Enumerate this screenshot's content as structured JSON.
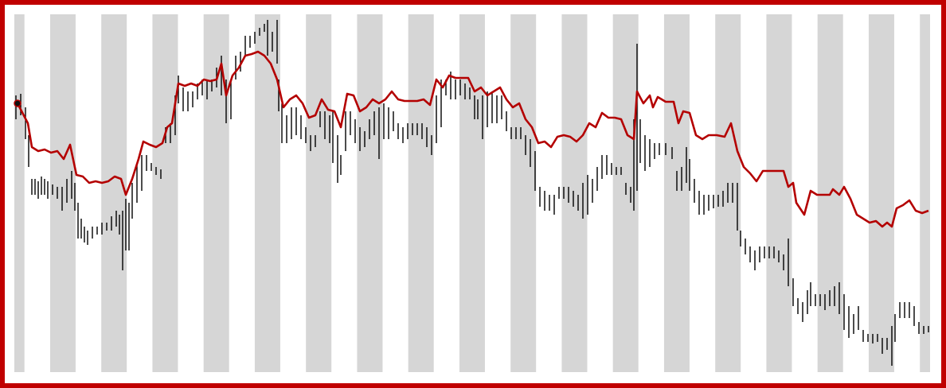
{
  "chart_data": {
    "type": "ohlc",
    "xlim": [
      18,
      1168
    ],
    "ylim": [
      0,
      450
    ],
    "bars": {
      "color": "#000000",
      "x": [
        20,
        26,
        32,
        36,
        40,
        44,
        48,
        52,
        56,
        60,
        66,
        72,
        78,
        84,
        90,
        94,
        98,
        102,
        106,
        110,
        116,
        122,
        128,
        134,
        140,
        146,
        150,
        154,
        158,
        162,
        166,
        172,
        178,
        184,
        190,
        196,
        202,
        208,
        214,
        220,
        224,
        230,
        236,
        242,
        248,
        254,
        260,
        266,
        272,
        278,
        284,
        290,
        296,
        302,
        308,
        314,
        320,
        326,
        332,
        336,
        342,
        348,
        350,
        354,
        360,
        366,
        372,
        378,
        384,
        390,
        396,
        402,
        408,
        414,
        418,
        424,
        428,
        434,
        440,
        446,
        452,
        458,
        464,
        470,
        476,
        482,
        488,
        494,
        500,
        506,
        512,
        518,
        524,
        530,
        536,
        542,
        548,
        554,
        560,
        566,
        572,
        578,
        584,
        590,
        596,
        600,
        606,
        612,
        618,
        624,
        630,
        636,
        642,
        648,
        654,
        660,
        666,
        672,
        678,
        684,
        690,
        696,
        702,
        708,
        714,
        720,
        726,
        732,
        738,
        744,
        750,
        756,
        762,
        768,
        774,
        780,
        786,
        792,
        796,
        800,
        804,
        810,
        816,
        822,
        828,
        836,
        844,
        850,
        856,
        862,
        866,
        872,
        878,
        884,
        890,
        896,
        902,
        908,
        914,
        920,
        926,
        930,
        936,
        942,
        948,
        954,
        960,
        966,
        972,
        978,
        984,
        990,
        996,
        1002,
        1008,
        1014,
        1018,
        1024,
        1030,
        1036,
        1042,
        1048,
        1054,
        1060,
        1066,
        1072,
        1078,
        1084,
        1090,
        1096,
        1102,
        1108,
        1114,
        1120,
        1124,
        1130,
        1136,
        1142,
        1148,
        1154,
        1160,
        1166
      ],
      "high": [
        348,
        350,
        333,
        298,
        243,
        243,
        240,
        246,
        243,
        240,
        236,
        233,
        233,
        243,
        253,
        238,
        213,
        193,
        183,
        178,
        183,
        183,
        188,
        188,
        196,
        203,
        198,
        203,
        218,
        213,
        238,
        263,
        273,
        273,
        263,
        258,
        255,
        308,
        313,
        348,
        373,
        358,
        353,
        353,
        363,
        368,
        368,
        368,
        383,
        398,
        368,
        368,
        398,
        403,
        423,
        423,
        428,
        433,
        438,
        443,
        428,
        443,
        368,
        338,
        323,
        333,
        333,
        323,
        308,
        298,
        298,
        328,
        328,
        323,
        328,
        298,
        273,
        328,
        328,
        318,
        308,
        303,
        318,
        328,
        333,
        338,
        333,
        328,
        313,
        308,
        313,
        313,
        313,
        313,
        308,
        298,
        348,
        368,
        368,
        378,
        368,
        368,
        363,
        358,
        348,
        343,
        348,
        353,
        353,
        348,
        348,
        328,
        308,
        308,
        308,
        298,
        293,
        278,
        233,
        228,
        223,
        223,
        233,
        233,
        233,
        228,
        223,
        238,
        248,
        243,
        258,
        273,
        273,
        263,
        258,
        258,
        238,
        233,
        318,
        413,
        318,
        298,
        293,
        288,
        288,
        288,
        283,
        253,
        258,
        283,
        268,
        243,
        228,
        223,
        223,
        223,
        223,
        228,
        238,
        238,
        238,
        178,
        168,
        158,
        153,
        158,
        158,
        158,
        158,
        153,
        148,
        168,
        118,
        93,
        88,
        103,
        113,
        98,
        98,
        98,
        103,
        108,
        113,
        98,
        83,
        73,
        83,
        53,
        48,
        48,
        48,
        43,
        43,
        58,
        73,
        88,
        88,
        88,
        83,
        63,
        58,
        58
      ],
      "low": [
        318,
        323,
        293,
        258,
        223,
        223,
        218,
        223,
        223,
        218,
        223,
        218,
        203,
        213,
        218,
        203,
        168,
        168,
        163,
        160,
        168,
        173,
        173,
        178,
        178,
        183,
        173,
        128,
        153,
        153,
        193,
        213,
        228,
        253,
        253,
        248,
        243,
        288,
        288,
        298,
        338,
        328,
        328,
        333,
        343,
        348,
        343,
        353,
        358,
        348,
        313,
        318,
        368,
        378,
        398,
        408,
        413,
        423,
        428,
        398,
        403,
        388,
        328,
        288,
        288,
        293,
        298,
        293,
        288,
        278,
        283,
        308,
        293,
        288,
        263,
        238,
        248,
        278,
        298,
        288,
        278,
        283,
        293,
        298,
        268,
        293,
        293,
        303,
        293,
        288,
        293,
        298,
        298,
        293,
        283,
        273,
        288,
        308,
        348,
        343,
        343,
        348,
        343,
        343,
        318,
        318,
        293,
        308,
        313,
        313,
        318,
        303,
        293,
        293,
        293,
        273,
        258,
        228,
        208,
        203,
        203,
        198,
        218,
        218,
        213,
        208,
        203,
        193,
        198,
        213,
        228,
        243,
        248,
        248,
        248,
        248,
        223,
        213,
        203,
        228,
        263,
        253,
        258,
        268,
        273,
        273,
        268,
        228,
        228,
        238,
        228,
        213,
        198,
        198,
        203,
        206,
        208,
        208,
        213,
        213,
        178,
        158,
        148,
        138,
        128,
        138,
        143,
        143,
        143,
        138,
        128,
        108,
        83,
        73,
        63,
        73,
        83,
        83,
        83,
        78,
        83,
        83,
        73,
        53,
        43,
        48,
        53,
        38,
        38,
        36,
        38,
        23,
        28,
        8,
        38,
        68,
        68,
        68,
        58,
        48,
        48,
        50
      ]
    },
    "line": {
      "color": "#b40000",
      "x": [
        22,
        35,
        40,
        48,
        56,
        64,
        72,
        80,
        88,
        96,
        104,
        112,
        120,
        128,
        136,
        144,
        152,
        158,
        166,
        174,
        180,
        188,
        196,
        204,
        210,
        216,
        224,
        232,
        240,
        248,
        256,
        264,
        272,
        278,
        284,
        292,
        300,
        308,
        316,
        324,
        332,
        340,
        348,
        356,
        364,
        372,
        380,
        388,
        396,
        404,
        412,
        420,
        428,
        436,
        444,
        452,
        460,
        468,
        476,
        484,
        492,
        500,
        508,
        516,
        524,
        532,
        540,
        548,
        556,
        564,
        572,
        580,
        588,
        596,
        604,
        612,
        620,
        628,
        636,
        644,
        652,
        660,
        668,
        676,
        684,
        692,
        700,
        708,
        716,
        724,
        732,
        740,
        748,
        756,
        764,
        772,
        780,
        788,
        796,
        800,
        808,
        816,
        820,
        826,
        836,
        846,
        852,
        858,
        866,
        874,
        882,
        890,
        900,
        910,
        918,
        926,
        934,
        942,
        950,
        958,
        966,
        976,
        984,
        990,
        996,
        1000,
        1010,
        1018,
        1026,
        1034,
        1042,
        1046,
        1054,
        1060,
        1068,
        1076,
        1084,
        1092,
        1100,
        1108,
        1114,
        1120,
        1126,
        1134,
        1142,
        1150,
        1158,
        1166
      ],
      "values": [
        338,
        313,
        283,
        278,
        280,
        276,
        278,
        268,
        286,
        248,
        246,
        238,
        240,
        238,
        240,
        246,
        243,
        223,
        243,
        268,
        290,
        286,
        283,
        288,
        308,
        313,
        363,
        360,
        363,
        360,
        368,
        366,
        368,
        388,
        348,
        373,
        383,
        398,
        400,
        403,
        398,
        388,
        368,
        333,
        343,
        348,
        338,
        320,
        323,
        343,
        330,
        328,
        308,
        350,
        348,
        328,
        333,
        343,
        338,
        343,
        353,
        343,
        341,
        341,
        341,
        343,
        336,
        368,
        358,
        373,
        370,
        370,
        370,
        353,
        358,
        348,
        353,
        358,
        343,
        333,
        338,
        318,
        308,
        288,
        290,
        283,
        296,
        298,
        296,
        290,
        298,
        313,
        308,
        326,
        320,
        320,
        318,
        298,
        293,
        353,
        338,
        348,
        333,
        346,
        340,
        340,
        313,
        328,
        326,
        298,
        293,
        298,
        298,
        296,
        313,
        278,
        258,
        250,
        240,
        253,
        253,
        253,
        253,
        233,
        238,
        213,
        198,
        228,
        223,
        223,
        223,
        230,
        223,
        233,
        218,
        198,
        193,
        188,
        190,
        183,
        188,
        183,
        206,
        210,
        216,
        203,
        200,
        203
      ]
    }
  }
}
